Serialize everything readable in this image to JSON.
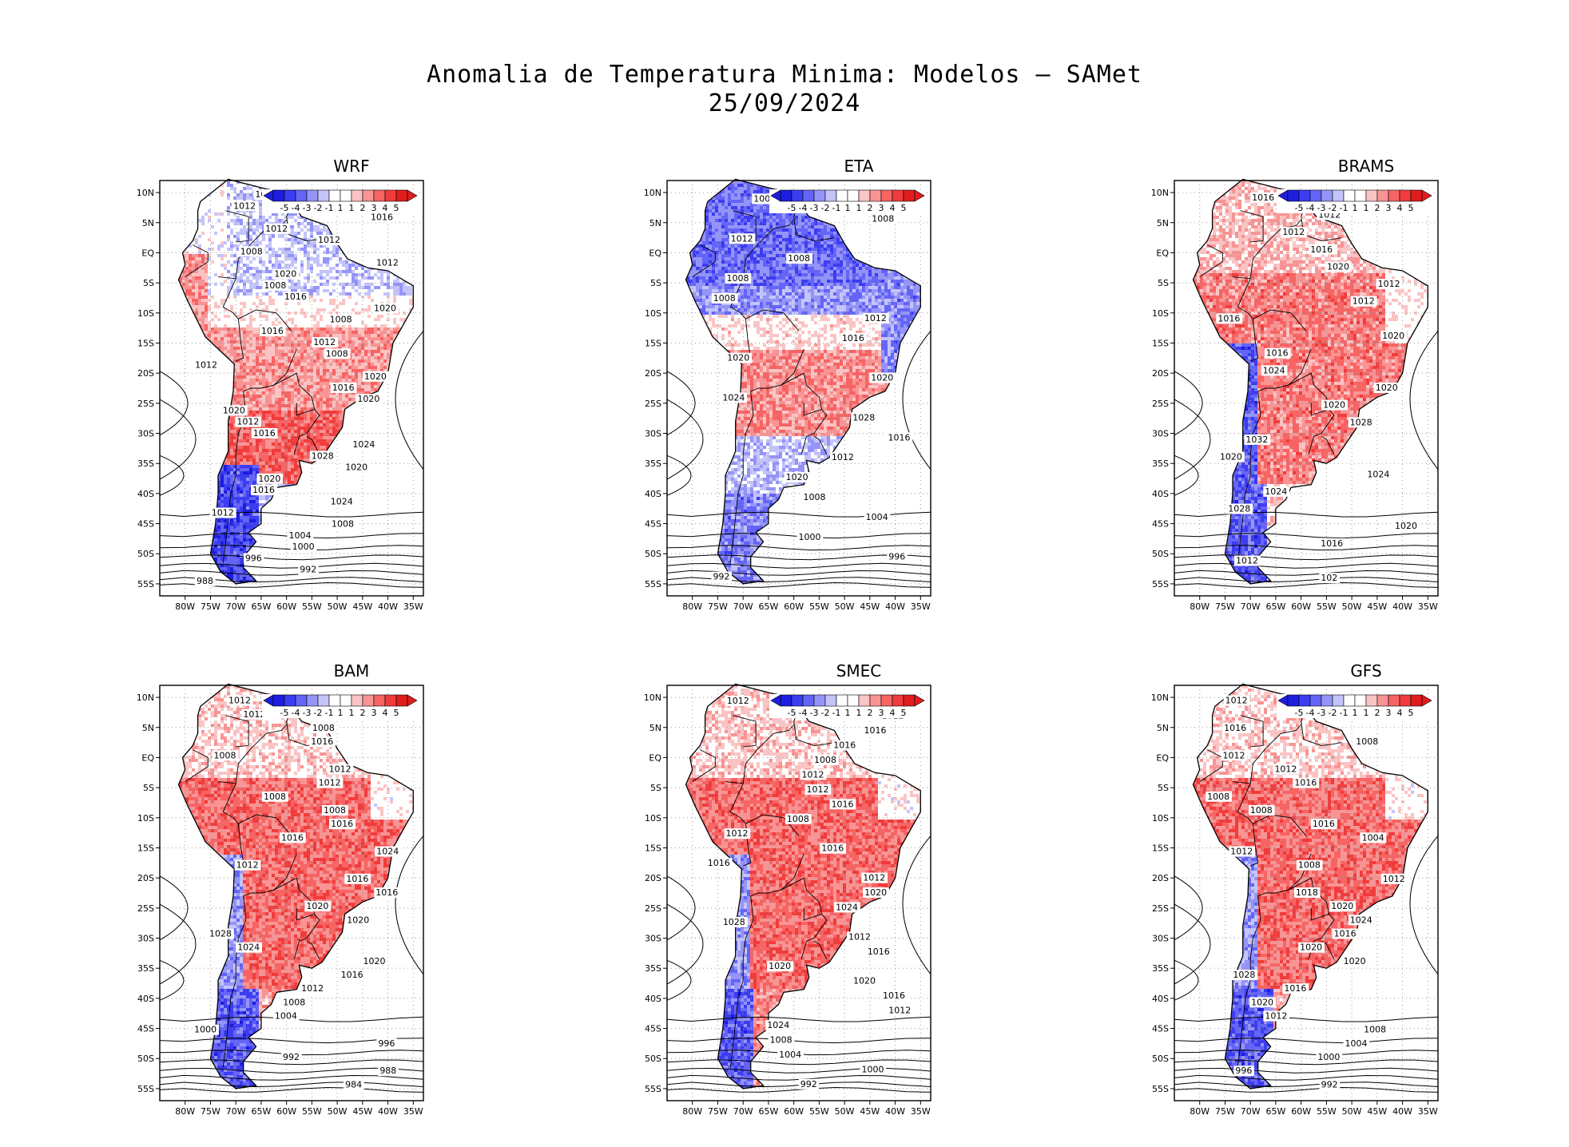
{
  "figure": {
    "title": "Anomalia de Temperatura Minima: Modelos — SAMet",
    "date": "25/09/2024"
  },
  "axes": {
    "lat_labels": [
      "10N",
      "5N",
      "EQ",
      "5S",
      "10S",
      "15S",
      "20S",
      "25S",
      "30S",
      "35S",
      "40S",
      "45S",
      "50S",
      "55S"
    ],
    "lon_labels": [
      "80W",
      "75W",
      "70W",
      "65W",
      "60W",
      "55W",
      "50W",
      "45W",
      "40W",
      "35W"
    ]
  },
  "colorbar": {
    "labels": [
      "-5",
      "-4",
      "-3",
      "-2",
      "-1",
      "1",
      "1",
      "2",
      "3",
      "4",
      "5"
    ],
    "colors": [
      "#1d1de0",
      "#3c3cf0",
      "#6464f6",
      "#9494f8",
      "#c4c4fb",
      "#ffffff",
      "#ffffff",
      "#fbc4c4",
      "#f89494",
      "#f66464",
      "#f03c3c",
      "#e01d1d"
    ]
  },
  "chart_data": [
    {
      "type": "map",
      "model": "WRF",
      "anomaly_pattern": "cool north and west, warm central-south, cold southern Andes",
      "isobar_labels": [
        "1012",
        "1012",
        "1016",
        "1012",
        "1012",
        "1008",
        "1012",
        "1020",
        "1008",
        "1016",
        "1020",
        "1008",
        "1016",
        "1012",
        "1008",
        "1012",
        "1020",
        "1016",
        "1020",
        "1020",
        "1012",
        "1016",
        "1024",
        "1028",
        "1020",
        "1020",
        "1016",
        "1024",
        "1012",
        "1008",
        "1004",
        "1000",
        "996",
        "992",
        "988"
      ]
    },
    {
      "type": "map",
      "model": "ETA",
      "anomaly_pattern": "strong cool north, warm centre-south",
      "isobar_labels": [
        "1008",
        "1008",
        "1012",
        "1008",
        "1008",
        "1008",
        "1012",
        "1016",
        "1020",
        "1020",
        "1024",
        "1028",
        "1016",
        "1012",
        "1020",
        "1008",
        "1004",
        "1000",
        "996",
        "992"
      ]
    },
    {
      "type": "map",
      "model": "BRAMS",
      "anomaly_pattern": "warm over most of continent, cold southern Andes",
      "isobar_labels": [
        "1016",
        "1012",
        "1012",
        "1016",
        "1020",
        "1012",
        "1012",
        "1016",
        "1020",
        "1016",
        "1024",
        "1020",
        "1020",
        "1028",
        "1032",
        "1020",
        "1024",
        "1024",
        "1028",
        "1020",
        "1016",
        "1012",
        "102"
      ]
    },
    {
      "type": "map",
      "model": "BAM",
      "anomaly_pattern": "strong warm centre, cold southern Andes",
      "isobar_labels": [
        "1012",
        "1012",
        "1008",
        "1016",
        "1008",
        "1012",
        "1012",
        "1008",
        "1008",
        "1016",
        "1016",
        "1024",
        "1012",
        "1016",
        "1016",
        "1020",
        "1020",
        "1028",
        "1024",
        "1020",
        "1016",
        "1012",
        "1008",
        "1004",
        "1000",
        "996",
        "992",
        "988",
        "984"
      ]
    },
    {
      "type": "map",
      "model": "SMEC",
      "anomaly_pattern": "strong warm over most of continent",
      "isobar_labels": [
        "1012",
        "1012",
        "1016",
        "1016",
        "1008",
        "1012",
        "1012",
        "1016",
        "1008",
        "1012",
        "1016",
        "1016",
        "1012",
        "1020",
        "1024",
        "1028",
        "1012",
        "1016",
        "1020",
        "1020",
        "1016",
        "1012",
        "1024",
        "1008",
        "1004",
        "1000",
        "992"
      ]
    },
    {
      "type": "map",
      "model": "GFS",
      "anomaly_pattern": "strong warm over most of continent, cold southern tip",
      "isobar_labels": [
        "1012",
        "1012",
        "1016",
        "1008",
        "1012",
        "1012",
        "1016",
        "1008",
        "1008",
        "1016",
        "1004",
        "1012",
        "1008",
        "1012",
        "1018",
        "1020",
        "1024",
        "1016",
        "1020",
        "1020",
        "1028",
        "1016",
        "1020",
        "1012",
        "1008",
        "1004",
        "1000",
        "996",
        "992"
      ]
    }
  ]
}
